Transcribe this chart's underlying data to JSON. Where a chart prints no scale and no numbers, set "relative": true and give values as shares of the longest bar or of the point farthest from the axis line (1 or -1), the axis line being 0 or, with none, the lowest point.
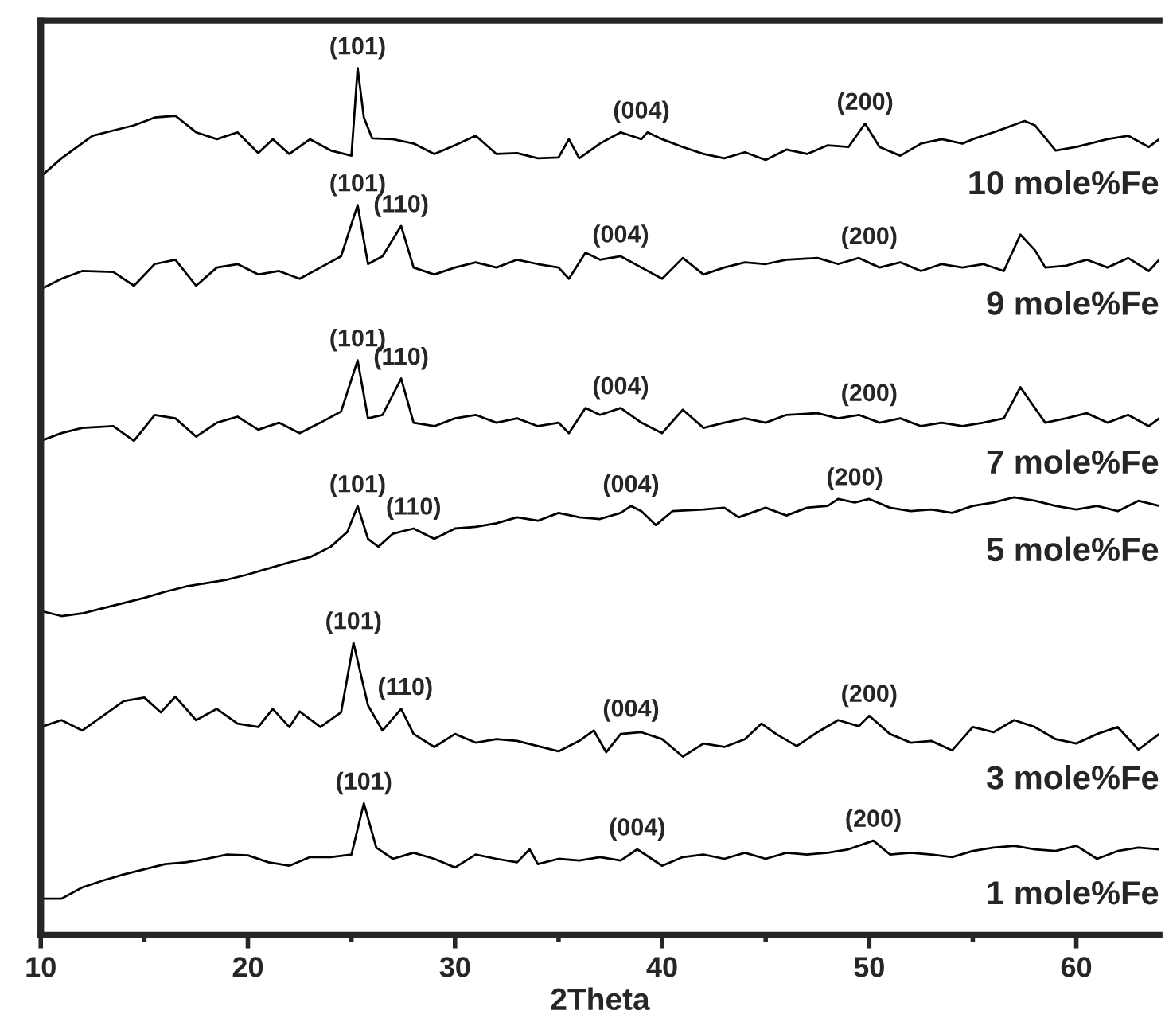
{
  "chart_data": {
    "type": "line",
    "relative": true,
    "xlabel": "2Theta",
    "xlim": [
      10,
      64
    ],
    "xticks": [
      10,
      20,
      30,
      40,
      50,
      60
    ],
    "grid": false,
    "legend": false,
    "marker": "none",
    "line_style": "solid",
    "series": [
      {
        "name": "10 mole%Fe",
        "color": "#000000",
        "x": [
          10,
          11,
          12.5,
          13.5,
          14.5,
          15.5,
          16.5,
          17.5,
          18.5,
          19.5,
          20.5,
          21.2,
          22,
          23,
          24,
          25,
          25.3,
          25.6,
          26,
          27,
          28,
          29,
          30,
          31,
          32,
          33,
          34,
          35,
          35.5,
          36,
          37,
          38,
          39,
          39.3,
          40,
          41,
          42,
          43,
          44,
          45,
          46,
          47,
          48,
          49,
          49.8,
          50.5,
          51.5,
          52.5,
          53.5,
          54.5,
          55,
          56,
          57.5,
          58,
          59,
          60,
          61.5,
          62.5,
          63.5,
          64
        ],
        "values": [
          0.875,
          0.896,
          0.922,
          0.928,
          0.934,
          0.943,
          0.945,
          0.926,
          0.918,
          0.926,
          0.902,
          0.918,
          0.901,
          0.918,
          0.905,
          0.899,
          1.0,
          0.943,
          0.919,
          0.918,
          0.913,
          0.901,
          0.911,
          0.922,
          0.901,
          0.902,
          0.896,
          0.897,
          0.918,
          0.896,
          0.913,
          0.926,
          0.918,
          0.926,
          0.918,
          0.909,
          0.901,
          0.896,
          0.903,
          0.894,
          0.906,
          0.901,
          0.911,
          0.909,
          0.936,
          0.909,
          0.899,
          0.913,
          0.918,
          0.913,
          0.918,
          0.926,
          0.939,
          0.934,
          0.905,
          0.909,
          0.918,
          0.922,
          0.909,
          0.918
        ]
      },
      {
        "name": "9 mole%Fe",
        "color": "#000000",
        "x": [
          10,
          11,
          12,
          13.5,
          14.5,
          15.5,
          16.5,
          17.5,
          18.5,
          19.5,
          20.5,
          21.5,
          22.5,
          23.5,
          24.5,
          25.3,
          25.8,
          26.5,
          27.4,
          28,
          29,
          30,
          31,
          32,
          33,
          34,
          35,
          35.5,
          36.3,
          37,
          38,
          39,
          40,
          41,
          42,
          43,
          44,
          45,
          46,
          47.5,
          48.5,
          49.5,
          50.5,
          51.5,
          52.5,
          53.5,
          54.5,
          55.5,
          56.5,
          57.3,
          58,
          58.5,
          59.5,
          60.5,
          61.5,
          62.5,
          63.5,
          64
        ],
        "values": [
          0.745,
          0.757,
          0.766,
          0.765,
          0.749,
          0.774,
          0.779,
          0.749,
          0.77,
          0.774,
          0.762,
          0.766,
          0.757,
          0.77,
          0.783,
          0.842,
          0.774,
          0.783,
          0.818,
          0.77,
          0.762,
          0.77,
          0.776,
          0.77,
          0.779,
          0.774,
          0.77,
          0.757,
          0.787,
          0.779,
          0.783,
          0.77,
          0.757,
          0.781,
          0.762,
          0.77,
          0.776,
          0.774,
          0.779,
          0.781,
          0.774,
          0.781,
          0.77,
          0.776,
          0.766,
          0.774,
          0.77,
          0.774,
          0.766,
          0.808,
          0.79,
          0.77,
          0.772,
          0.779,
          0.77,
          0.781,
          0.766,
          0.779
        ]
      },
      {
        "name": "7 mole%Fe",
        "color": "#000000",
        "x": [
          10,
          11,
          12,
          13.5,
          14.5,
          15.5,
          16.5,
          17.5,
          18.5,
          19.5,
          20.5,
          21.5,
          22.5,
          23.5,
          24.5,
          25.3,
          25.8,
          26.5,
          27.4,
          28,
          29,
          30,
          31,
          32,
          33,
          34,
          35,
          35.5,
          36.3,
          37,
          38,
          39,
          40,
          41,
          42,
          43,
          44,
          45,
          46,
          47.5,
          48.5,
          49.5,
          50.5,
          51.5,
          52.5,
          53.5,
          54.5,
          55.5,
          56.5,
          57.3,
          58,
          58.5,
          59.5,
          60.5,
          61.5,
          62.5,
          63.5,
          64
        ],
        "values": [
          0.57,
          0.579,
          0.585,
          0.587,
          0.57,
          0.6,
          0.596,
          0.575,
          0.591,
          0.598,
          0.583,
          0.591,
          0.579,
          0.591,
          0.604,
          0.663,
          0.596,
          0.6,
          0.642,
          0.591,
          0.587,
          0.596,
          0.6,
          0.591,
          0.596,
          0.587,
          0.591,
          0.579,
          0.608,
          0.6,
          0.608,
          0.591,
          0.579,
          0.606,
          0.585,
          0.591,
          0.596,
          0.591,
          0.6,
          0.602,
          0.596,
          0.6,
          0.591,
          0.596,
          0.587,
          0.591,
          0.587,
          0.591,
          0.596,
          0.632,
          0.608,
          0.591,
          0.596,
          0.602,
          0.591,
          0.6,
          0.587,
          0.596
        ]
      },
      {
        "name": "5 mole%Fe",
        "color": "#000000",
        "x": [
          10,
          11,
          12,
          13,
          14,
          15,
          16,
          17,
          18,
          19,
          20,
          21,
          22,
          23,
          24,
          24.8,
          25.3,
          25.8,
          26.3,
          27,
          28,
          29,
          30,
          31,
          32,
          33,
          34,
          35,
          36,
          37,
          38,
          38.5,
          39,
          39.7,
          40.5,
          42,
          43,
          43.7,
          45,
          46,
          47,
          48,
          48.5,
          49.3,
          50,
          51,
          52,
          53,
          54,
          55,
          56,
          57,
          58,
          59,
          60,
          61,
          62,
          63,
          64
        ],
        "values": [
          0.374,
          0.368,
          0.371,
          0.377,
          0.383,
          0.389,
          0.396,
          0.402,
          0.406,
          0.41,
          0.416,
          0.423,
          0.43,
          0.436,
          0.448,
          0.465,
          0.495,
          0.457,
          0.448,
          0.463,
          0.469,
          0.457,
          0.469,
          0.471,
          0.475,
          0.482,
          0.478,
          0.487,
          0.482,
          0.48,
          0.487,
          0.495,
          0.489,
          0.473,
          0.489,
          0.491,
          0.493,
          0.482,
          0.493,
          0.484,
          0.493,
          0.495,
          0.503,
          0.499,
          0.503,
          0.493,
          0.489,
          0.491,
          0.487,
          0.495,
          0.499,
          0.505,
          0.501,
          0.495,
          0.491,
          0.495,
          0.489,
          0.501,
          0.495
        ]
      },
      {
        "name": "3 mole%Fe",
        "color": "#000000",
        "x": [
          10,
          11,
          12,
          13,
          14,
          15,
          15.8,
          16.5,
          17.5,
          18.5,
          19.5,
          20.5,
          21.2,
          22,
          22.5,
          23.5,
          24.5,
          25.1,
          25.8,
          26.5,
          27.4,
          28,
          29,
          30,
          31,
          32,
          33,
          34,
          35,
          36,
          36.7,
          37.3,
          38,
          39,
          40,
          41,
          42,
          43,
          44,
          44.8,
          45.5,
          46.5,
          47.5,
          48.5,
          49.5,
          50,
          51,
          52,
          53,
          54,
          55,
          56,
          57,
          58,
          59,
          60,
          61,
          62,
          63,
          64
        ],
        "values": [
          0.24,
          0.248,
          0.236,
          0.253,
          0.27,
          0.274,
          0.257,
          0.275,
          0.248,
          0.261,
          0.244,
          0.24,
          0.261,
          0.24,
          0.258,
          0.24,
          0.257,
          0.337,
          0.265,
          0.236,
          0.261,
          0.232,
          0.217,
          0.232,
          0.222,
          0.226,
          0.224,
          0.218,
          0.212,
          0.224,
          0.236,
          0.211,
          0.232,
          0.234,
          0.226,
          0.206,
          0.221,
          0.217,
          0.226,
          0.244,
          0.232,
          0.218,
          0.234,
          0.248,
          0.241,
          0.253,
          0.232,
          0.222,
          0.224,
          0.213,
          0.24,
          0.234,
          0.248,
          0.24,
          0.226,
          0.221,
          0.232,
          0.24,
          0.214,
          0.232
        ]
      },
      {
        "name": "1 mole%Fe",
        "color": "#000000",
        "x": [
          10,
          11,
          12,
          13,
          14,
          15,
          16,
          17,
          18,
          19,
          20,
          21,
          22,
          23,
          24,
          25,
          25.6,
          26.2,
          27,
          28,
          29,
          30,
          31,
          32,
          33,
          33.6,
          34,
          35,
          36,
          37,
          38,
          38.8,
          40,
          41,
          42,
          43,
          44,
          45,
          46,
          47,
          48,
          49,
          50.2,
          51,
          52,
          53,
          54,
          55,
          56,
          57,
          58,
          59,
          60,
          61,
          62,
          63,
          64
        ],
        "values": [
          0.042,
          0.042,
          0.055,
          0.063,
          0.07,
          0.076,
          0.082,
          0.084,
          0.088,
          0.093,
          0.092,
          0.084,
          0.08,
          0.09,
          0.09,
          0.093,
          0.152,
          0.101,
          0.088,
          0.095,
          0.088,
          0.078,
          0.093,
          0.088,
          0.084,
          0.099,
          0.082,
          0.088,
          0.086,
          0.09,
          0.086,
          0.099,
          0.08,
          0.09,
          0.093,
          0.088,
          0.095,
          0.088,
          0.095,
          0.093,
          0.095,
          0.099,
          0.109,
          0.093,
          0.095,
          0.093,
          0.09,
          0.097,
          0.101,
          0.103,
          0.099,
          0.097,
          0.103,
          0.088,
          0.097,
          0.101,
          0.099
        ]
      }
    ],
    "annotations": [
      {
        "text": "(101)",
        "x": 25.3,
        "y": 1.0
      },
      {
        "text": "(004)",
        "x": 39,
        "y": 0.926
      },
      {
        "text": "(200)",
        "x": 49.8,
        "y": 0.936
      },
      {
        "text": "(101)",
        "x": 25.3,
        "y": 0.842
      },
      {
        "text": "(110)",
        "x": 27.4,
        "y": 0.818
      },
      {
        "text": "(004)",
        "x": 38,
        "y": 0.783
      },
      {
        "text": "(200)",
        "x": 50,
        "y": 0.781
      },
      {
        "text": "(101)",
        "x": 25.3,
        "y": 0.663
      },
      {
        "text": "(110)",
        "x": 27.4,
        "y": 0.642
      },
      {
        "text": "(004)",
        "x": 38,
        "y": 0.608
      },
      {
        "text": "(200)",
        "x": 50,
        "y": 0.6
      },
      {
        "text": "(101)",
        "x": 25.3,
        "y": 0.495
      },
      {
        "text": "(110)",
        "x": 28,
        "y": 0.469
      },
      {
        "text": "(004)",
        "x": 38.5,
        "y": 0.495
      },
      {
        "text": "(200)",
        "x": 49.3,
        "y": 0.503
      },
      {
        "text": "(101)",
        "x": 25.1,
        "y": 0.337
      },
      {
        "text": "(110)",
        "x": 27.6,
        "y": 0.261
      },
      {
        "text": "(004)",
        "x": 38.5,
        "y": 0.236
      },
      {
        "text": "(200)",
        "x": 50,
        "y": 0.253
      },
      {
        "text": "(101)",
        "x": 25.6,
        "y": 0.152
      },
      {
        "text": "(004)",
        "x": 38.8,
        "y": 0.099
      },
      {
        "text": "(200)",
        "x": 50.2,
        "y": 0.109
      }
    ]
  }
}
